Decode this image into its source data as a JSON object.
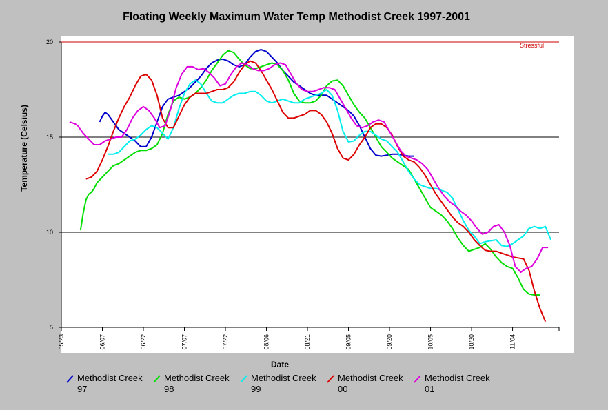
{
  "chart_data": {
    "type": "line",
    "title": "Floating Weekly Maximum Water Temp Methodist Creek 1997-2001",
    "xlabel": "Date",
    "ylabel": "Temperature (Celsius)",
    "ylim": [
      5,
      20
    ],
    "yticks": [
      5,
      10,
      15,
      20
    ],
    "x_range": [
      "05/23",
      "11/21"
    ],
    "x_ticks": [
      "05/23",
      "06/07",
      "06/22",
      "07/07",
      "07/22",
      "08/06",
      "08/21",
      "09/05",
      "09/20",
      "10/05",
      "10/20",
      "11/04"
    ],
    "grid": "horizontal at 10, 15, 20",
    "threshold": {
      "value": 20,
      "label": "Stressful",
      "color": "#cc0000"
    },
    "series": [
      {
        "name": "Methodist Creek 97",
        "color": "#0000cc",
        "x": [
          "06/06",
          "06/07",
          "06/08",
          "06/09",
          "06/11",
          "06/13",
          "06/15",
          "06/17",
          "06/19",
          "06/21",
          "06/23",
          "06/25",
          "06/27",
          "06/29",
          "07/01",
          "07/03",
          "07/05",
          "07/07",
          "07/09",
          "07/11",
          "07/13",
          "07/15",
          "07/17",
          "07/19",
          "07/21",
          "07/23",
          "07/25",
          "07/27",
          "07/29",
          "07/31",
          "08/02",
          "08/04",
          "08/06",
          "08/08",
          "08/10",
          "08/12",
          "08/14",
          "08/16",
          "08/18",
          "08/20",
          "08/22",
          "08/24",
          "08/26",
          "08/28",
          "08/30",
          "09/01",
          "09/03",
          "09/05",
          "09/07",
          "09/09",
          "09/11",
          "09/13",
          "09/15",
          "09/17",
          "09/19",
          "09/21",
          "09/23",
          "09/25",
          "09/27",
          "09/29"
        ],
        "y": [
          15.8,
          16.1,
          16.3,
          16.2,
          15.8,
          15.4,
          15.2,
          15.0,
          14.8,
          14.5,
          14.5,
          15.0,
          15.8,
          16.6,
          17.0,
          17.1,
          17.2,
          17.4,
          17.6,
          17.9,
          18.2,
          18.6,
          18.9,
          19.05,
          19.1,
          19.0,
          18.8,
          18.7,
          18.8,
          19.2,
          19.5,
          19.6,
          19.5,
          19.2,
          18.9,
          18.5,
          18.2,
          17.9,
          17.7,
          17.5,
          17.3,
          17.2,
          17.2,
          17.2,
          17.0,
          16.8,
          16.6,
          16.4,
          16.1,
          15.6,
          15.0,
          14.4,
          14.05,
          14.0,
          14.05,
          14.1,
          14.1,
          14.05,
          14.0,
          14.0
        ]
      },
      {
        "name": "Methodist Creek 98",
        "color": "#00dd00",
        "x": [
          "05/30",
          "05/31",
          "06/01",
          "06/02",
          "06/03",
          "06/04",
          "06/05",
          "06/07",
          "06/09",
          "06/11",
          "06/13",
          "06/15",
          "06/17",
          "06/19",
          "06/21",
          "06/23",
          "06/25",
          "06/27",
          "06/29",
          "07/01",
          "07/03",
          "07/05",
          "07/07",
          "07/09",
          "07/11",
          "07/13",
          "07/15",
          "07/17",
          "07/19",
          "07/21",
          "07/23",
          "07/25",
          "07/27",
          "07/29",
          "07/31",
          "08/02",
          "08/04",
          "08/06",
          "08/08",
          "08/10",
          "08/12",
          "08/14",
          "08/16",
          "08/18",
          "08/20",
          "08/22",
          "08/24",
          "08/26",
          "08/28",
          "08/30",
          "09/01",
          "09/03",
          "09/05",
          "09/07",
          "09/09",
          "09/11",
          "09/13",
          "09/15",
          "09/17",
          "09/19",
          "09/21",
          "09/23",
          "09/25",
          "09/27",
          "09/29",
          "10/01",
          "10/03",
          "10/05",
          "10/07",
          "10/09",
          "10/11",
          "10/13",
          "10/15",
          "10/17",
          "10/19",
          "10/21",
          "10/23",
          "10/25",
          "10/27",
          "10/29",
          "10/31",
          "11/02",
          "11/04",
          "11/06",
          "11/08",
          "11/10",
          "11/12",
          "11/14"
        ],
        "y": [
          10.1,
          11.0,
          11.7,
          12.0,
          12.1,
          12.3,
          12.6,
          12.9,
          13.2,
          13.5,
          13.6,
          13.8,
          14.0,
          14.2,
          14.3,
          14.3,
          14.4,
          14.6,
          15.2,
          16.2,
          16.9,
          17.1,
          17.0,
          17.1,
          17.3,
          17.6,
          18.0,
          18.5,
          18.9,
          19.3,
          19.55,
          19.45,
          19.1,
          18.8,
          18.6,
          18.6,
          18.7,
          18.8,
          18.9,
          18.8,
          18.5,
          18.0,
          17.3,
          16.9,
          16.8,
          16.8,
          16.9,
          17.2,
          17.7,
          17.95,
          18.0,
          17.7,
          17.2,
          16.7,
          16.3,
          16.0,
          15.5,
          15.0,
          14.5,
          14.2,
          13.9,
          13.7,
          13.5,
          13.3,
          12.8,
          12.3,
          11.8,
          11.3,
          11.1,
          10.9,
          10.6,
          10.2,
          9.7,
          9.3,
          9.0,
          9.1,
          9.2,
          9.4,
          9.1,
          8.7,
          8.4,
          8.2,
          8.1,
          7.6,
          7.0,
          6.75,
          6.7,
          6.7
        ]
      },
      {
        "name": "Methodist Creek 99",
        "color": "#00eeee",
        "x": [
          "06/09",
          "06/11",
          "06/13",
          "06/15",
          "06/17",
          "06/19",
          "06/21",
          "06/23",
          "06/25",
          "06/27",
          "06/29",
          "07/01",
          "07/03",
          "07/05",
          "07/07",
          "07/09",
          "07/11",
          "07/13",
          "07/15",
          "07/17",
          "07/19",
          "07/21",
          "07/23",
          "07/25",
          "07/27",
          "07/29",
          "07/31",
          "08/02",
          "08/04",
          "08/06",
          "08/08",
          "08/10",
          "08/12",
          "08/14",
          "08/16",
          "08/18",
          "08/20",
          "08/22",
          "08/24",
          "08/26",
          "08/28",
          "08/30",
          "09/01",
          "09/03",
          "09/05",
          "09/07",
          "09/09",
          "09/11",
          "09/13",
          "09/15",
          "09/17",
          "09/19",
          "09/21",
          "09/23",
          "09/25",
          "09/27",
          "09/29",
          "10/01",
          "10/03",
          "10/05",
          "10/07",
          "10/09",
          "10/11",
          "10/13",
          "10/15",
          "10/17",
          "10/19",
          "10/21",
          "10/23",
          "10/25",
          "10/27",
          "10/29",
          "10/31",
          "11/02",
          "11/04",
          "11/06",
          "11/08",
          "11/10",
          "11/12",
          "11/14",
          "11/16",
          "11/18"
        ],
        "y": [
          14.1,
          14.1,
          14.2,
          14.5,
          14.8,
          14.9,
          15.1,
          15.4,
          15.6,
          15.5,
          15.2,
          14.9,
          15.5,
          16.5,
          17.3,
          17.8,
          18.0,
          17.8,
          17.3,
          16.9,
          16.8,
          16.8,
          17.0,
          17.2,
          17.3,
          17.3,
          17.4,
          17.4,
          17.2,
          16.9,
          16.8,
          16.9,
          17.0,
          16.9,
          16.8,
          16.8,
          17.0,
          17.1,
          17.2,
          17.3,
          17.5,
          17.2,
          16.4,
          15.3,
          14.75,
          14.8,
          15.1,
          15.3,
          15.3,
          15.1,
          14.9,
          14.8,
          14.5,
          14.2,
          13.7,
          13.2,
          12.8,
          12.5,
          12.4,
          12.3,
          12.3,
          12.2,
          12.1,
          11.8,
          11.2,
          10.6,
          10.1,
          9.8,
          9.4,
          9.5,
          9.55,
          9.6,
          9.3,
          9.25,
          9.4,
          9.6,
          9.8,
          10.2,
          10.3,
          10.2,
          10.3,
          9.6
        ]
      },
      {
        "name": "Methodist Creek 00",
        "color": "#dd0000",
        "x": [
          "06/01",
          "06/03",
          "06/05",
          "06/07",
          "06/09",
          "06/11",
          "06/13",
          "06/15",
          "06/17",
          "06/19",
          "06/21",
          "06/23",
          "06/25",
          "06/27",
          "06/29",
          "07/01",
          "07/03",
          "07/05",
          "07/07",
          "07/09",
          "07/11",
          "07/13",
          "07/15",
          "07/17",
          "07/19",
          "07/21",
          "07/23",
          "07/25",
          "07/27",
          "07/29",
          "07/31",
          "08/02",
          "08/04",
          "08/06",
          "08/08",
          "08/10",
          "08/12",
          "08/14",
          "08/16",
          "08/18",
          "08/20",
          "08/22",
          "08/24",
          "08/26",
          "08/28",
          "08/30",
          "09/01",
          "09/03",
          "09/05",
          "09/07",
          "09/09",
          "09/11",
          "09/13",
          "09/15",
          "09/17",
          "09/19",
          "09/21",
          "09/23",
          "09/25",
          "09/27",
          "09/29",
          "10/01",
          "10/03",
          "10/05",
          "10/07",
          "10/09",
          "10/11",
          "10/13",
          "10/15",
          "10/17",
          "10/19",
          "10/21",
          "10/23",
          "10/25",
          "10/27",
          "10/29",
          "10/31",
          "11/02",
          "11/04",
          "11/06",
          "11/08",
          "11/10",
          "11/12",
          "11/14",
          "11/16"
        ],
        "y": [
          12.8,
          12.9,
          13.2,
          13.8,
          14.5,
          15.3,
          16.0,
          16.6,
          17.1,
          17.7,
          18.2,
          18.3,
          18.0,
          17.2,
          16.0,
          15.5,
          15.5,
          16.1,
          16.7,
          17.1,
          17.3,
          17.3,
          17.3,
          17.4,
          17.5,
          17.5,
          17.6,
          17.9,
          18.4,
          18.8,
          19.0,
          18.9,
          18.5,
          18.0,
          17.5,
          16.9,
          16.3,
          16.0,
          16.0,
          16.1,
          16.2,
          16.4,
          16.4,
          16.2,
          15.8,
          15.2,
          14.4,
          13.9,
          13.8,
          14.1,
          14.6,
          15.0,
          15.5,
          15.7,
          15.7,
          15.5,
          15.1,
          14.5,
          14.0,
          13.8,
          13.7,
          13.4,
          13.0,
          12.5,
          12.0,
          11.6,
          11.2,
          10.8,
          10.5,
          10.3,
          10.0,
          9.6,
          9.3,
          9.05,
          9.0,
          9.0,
          8.9,
          8.8,
          8.7,
          8.65,
          8.6,
          8.0,
          6.9,
          6.0,
          5.3
        ]
      },
      {
        "name": "Methodist Creek 01",
        "color": "#dd00dd",
        "x": [
          "05/26",
          "05/27",
          "05/28",
          "05/29",
          "05/31",
          "06/02",
          "06/04",
          "06/06",
          "06/08",
          "06/10",
          "06/12",
          "06/14",
          "06/16",
          "06/18",
          "06/20",
          "06/22",
          "06/24",
          "06/26",
          "06/28",
          "06/30",
          "07/02",
          "07/04",
          "07/06",
          "07/08",
          "07/10",
          "07/12",
          "07/14",
          "07/16",
          "07/18",
          "07/20",
          "07/22",
          "07/24",
          "07/26",
          "07/28",
          "07/30",
          "08/01",
          "08/03",
          "08/05",
          "08/07",
          "08/09",
          "08/11",
          "08/13",
          "08/15",
          "08/17",
          "08/19",
          "08/21",
          "08/23",
          "08/25",
          "08/27",
          "08/29",
          "08/31",
          "09/02",
          "09/04",
          "09/06",
          "09/08",
          "09/10",
          "09/12",
          "09/14",
          "09/16",
          "09/18",
          "09/20",
          "09/22",
          "09/24",
          "09/26",
          "09/28",
          "09/30",
          "10/02",
          "10/04",
          "10/06",
          "10/08",
          "10/10",
          "10/12",
          "10/14",
          "10/16",
          "10/18",
          "10/20",
          "10/22",
          "10/24",
          "10/26",
          "10/28",
          "10/30",
          "11/01",
          "11/03",
          "11/05",
          "11/07",
          "11/09",
          "11/11",
          "11/13",
          "11/15",
          "11/17"
        ],
        "y": [
          15.8,
          15.75,
          15.7,
          15.6,
          15.2,
          14.9,
          14.6,
          14.6,
          14.8,
          14.9,
          15.0,
          15.0,
          15.4,
          16.0,
          16.4,
          16.6,
          16.4,
          16.0,
          15.5,
          15.6,
          16.5,
          17.6,
          18.3,
          18.7,
          18.7,
          18.55,
          18.6,
          18.4,
          18.1,
          17.7,
          17.8,
          18.3,
          18.7,
          18.9,
          18.8,
          18.6,
          18.5,
          18.5,
          18.6,
          18.8,
          18.9,
          18.8,
          18.3,
          17.8,
          17.5,
          17.4,
          17.4,
          17.5,
          17.6,
          17.6,
          17.5,
          17.0,
          16.5,
          16.0,
          15.6,
          15.5,
          15.6,
          15.8,
          15.9,
          15.8,
          15.3,
          14.8,
          14.3,
          14.0,
          13.9,
          13.8,
          13.6,
          13.3,
          12.8,
          12.3,
          11.9,
          11.6,
          11.4,
          11.1,
          10.9,
          10.6,
          10.2,
          9.9,
          10.0,
          10.3,
          10.4,
          10.0,
          9.3,
          8.2,
          7.9,
          8.1,
          8.2,
          8.6,
          9.2,
          9.2
        ]
      }
    ]
  }
}
